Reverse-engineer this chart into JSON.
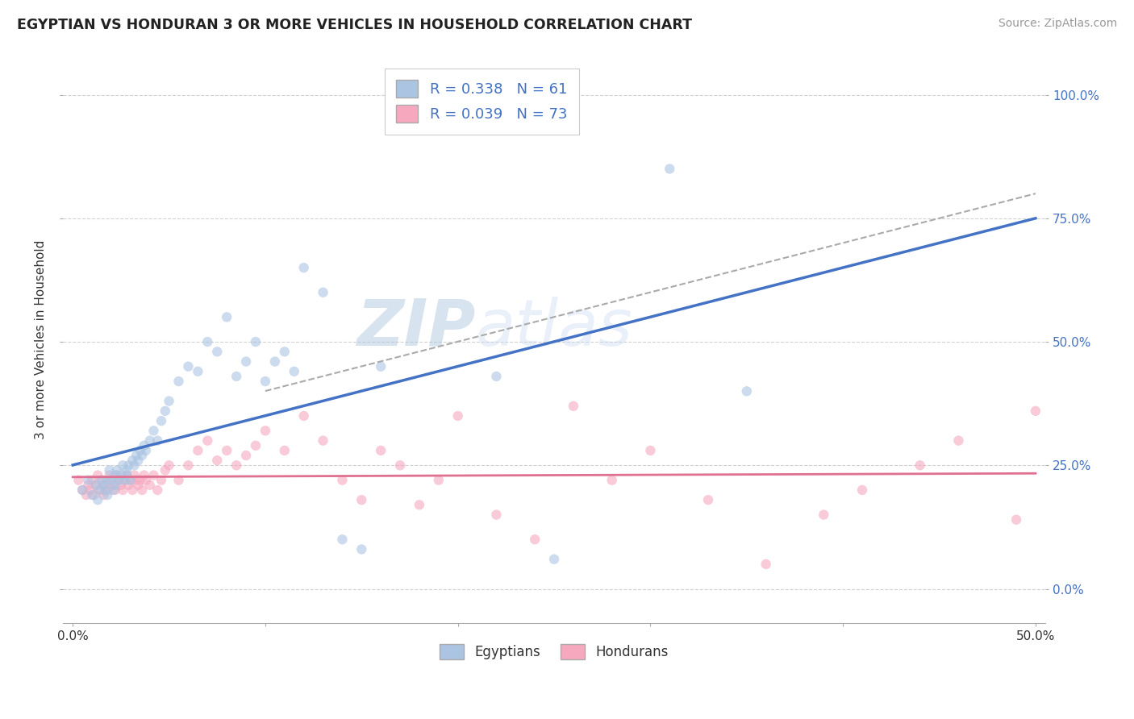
{
  "title": "EGYPTIAN VS HONDURAN 3 OR MORE VEHICLES IN HOUSEHOLD CORRELATION CHART",
  "source": "Source: ZipAtlas.com",
  "ylabel": "3 or more Vehicles in Household",
  "xlim": [
    -0.005,
    0.505
  ],
  "ylim": [
    -0.07,
    1.08
  ],
  "yticks": [
    0.0,
    0.25,
    0.5,
    0.75,
    1.0
  ],
  "ytick_labels_left": [
    "",
    "",
    "",
    "",
    ""
  ],
  "ytick_labels_right": [
    "0.0%",
    "25.0%",
    "50.0%",
    "75.0%",
    "100.0%"
  ],
  "xticks": [
    0.0,
    0.1,
    0.2,
    0.3,
    0.4,
    0.5
  ],
  "xtick_labels": [
    "0.0%",
    "",
    "",
    "",
    "",
    "50.0%"
  ],
  "background_color": "#ffffff",
  "grid_color": "#cccccc",
  "watermark_zip": "ZIP",
  "watermark_atlas": "atlas",
  "legend_r_egyptian": "R = 0.338",
  "legend_n_egyptian": "N = 61",
  "legend_r_honduran": "R = 0.039",
  "legend_n_honduran": "N = 73",
  "egyptian_color": "#aac4e2",
  "honduran_color": "#f5a8be",
  "egyptian_line_color": "#4472c4",
  "honduran_line_color": "#e07090",
  "dashed_line_color": "#aaaaaa",
  "scatter_alpha": 0.6,
  "scatter_size": 80,
  "egyptian_x": [
    0.005,
    0.008,
    0.01,
    0.012,
    0.013,
    0.014,
    0.015,
    0.016,
    0.017,
    0.018,
    0.018,
    0.019,
    0.02,
    0.021,
    0.022,
    0.022,
    0.023,
    0.024,
    0.025,
    0.026,
    0.027,
    0.028,
    0.028,
    0.029,
    0.03,
    0.031,
    0.032,
    0.033,
    0.034,
    0.035,
    0.036,
    0.037,
    0.038,
    0.04,
    0.042,
    0.044,
    0.046,
    0.048,
    0.05,
    0.055,
    0.06,
    0.065,
    0.07,
    0.075,
    0.08,
    0.085,
    0.09,
    0.095,
    0.1,
    0.105,
    0.11,
    0.115,
    0.12,
    0.13,
    0.14,
    0.15,
    0.16,
    0.22,
    0.25,
    0.31,
    0.35
  ],
  "egyptian_y": [
    0.2,
    0.22,
    0.19,
    0.21,
    0.18,
    0.2,
    0.22,
    0.21,
    0.2,
    0.22,
    0.19,
    0.24,
    0.22,
    0.2,
    0.23,
    0.21,
    0.24,
    0.22,
    0.23,
    0.25,
    0.22,
    0.24,
    0.23,
    0.25,
    0.22,
    0.26,
    0.25,
    0.27,
    0.26,
    0.28,
    0.27,
    0.29,
    0.28,
    0.3,
    0.32,
    0.3,
    0.34,
    0.36,
    0.38,
    0.42,
    0.45,
    0.44,
    0.5,
    0.48,
    0.55,
    0.43,
    0.46,
    0.5,
    0.42,
    0.46,
    0.48,
    0.44,
    0.65,
    0.6,
    0.1,
    0.08,
    0.45,
    0.43,
    0.06,
    0.85,
    0.4
  ],
  "honduran_x": [
    0.003,
    0.005,
    0.007,
    0.008,
    0.009,
    0.01,
    0.011,
    0.012,
    0.013,
    0.014,
    0.015,
    0.016,
    0.017,
    0.018,
    0.019,
    0.02,
    0.021,
    0.022,
    0.023,
    0.024,
    0.025,
    0.026,
    0.027,
    0.028,
    0.029,
    0.03,
    0.031,
    0.032,
    0.033,
    0.034,
    0.035,
    0.036,
    0.037,
    0.038,
    0.04,
    0.042,
    0.044,
    0.046,
    0.048,
    0.05,
    0.055,
    0.06,
    0.065,
    0.07,
    0.075,
    0.08,
    0.085,
    0.09,
    0.095,
    0.1,
    0.11,
    0.12,
    0.13,
    0.14,
    0.15,
    0.16,
    0.17,
    0.18,
    0.19,
    0.2,
    0.22,
    0.24,
    0.26,
    0.28,
    0.3,
    0.33,
    0.36,
    0.39,
    0.41,
    0.44,
    0.46,
    0.49,
    0.5
  ],
  "honduran_y": [
    0.22,
    0.2,
    0.19,
    0.21,
    0.2,
    0.22,
    0.19,
    0.21,
    0.23,
    0.2,
    0.22,
    0.19,
    0.21,
    0.2,
    0.23,
    0.22,
    0.21,
    0.2,
    0.23,
    0.22,
    0.21,
    0.2,
    0.22,
    0.23,
    0.21,
    0.22,
    0.2,
    0.23,
    0.22,
    0.21,
    0.22,
    0.2,
    0.23,
    0.22,
    0.21,
    0.23,
    0.2,
    0.22,
    0.24,
    0.25,
    0.22,
    0.25,
    0.28,
    0.3,
    0.26,
    0.28,
    0.25,
    0.27,
    0.29,
    0.32,
    0.28,
    0.35,
    0.3,
    0.22,
    0.18,
    0.28,
    0.25,
    0.17,
    0.22,
    0.35,
    0.15,
    0.1,
    0.37,
    0.22,
    0.28,
    0.18,
    0.05,
    0.15,
    0.2,
    0.25,
    0.3,
    0.14,
    0.36
  ]
}
